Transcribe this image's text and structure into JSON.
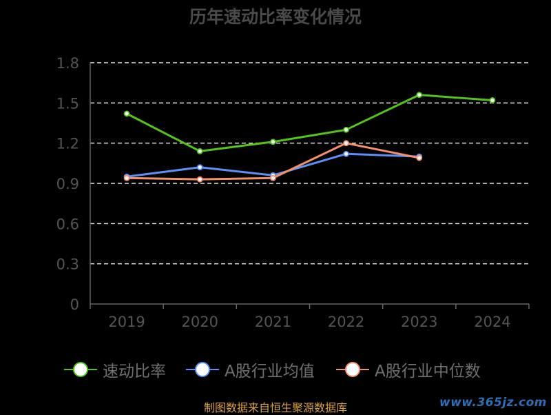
{
  "chart_data": {
    "type": "line",
    "title": "历年速动比率变化情况",
    "categories": [
      "2019",
      "2020",
      "2021",
      "2022",
      "2023",
      "2024"
    ],
    "y_ticks": [
      "0",
      "0.3",
      "0.6",
      "0.9",
      "1.2",
      "1.5",
      "1.8"
    ],
    "ylim": [
      0,
      1.8
    ],
    "grid": true,
    "legend_position": "bottom",
    "series": [
      {
        "name": "速动比率",
        "color": "#52c41a",
        "values": [
          1.42,
          1.14,
          1.21,
          1.3,
          1.56,
          1.52
        ]
      },
      {
        "name": "A股行业均值",
        "color": "#5b8ff9",
        "values": [
          0.95,
          1.02,
          0.96,
          1.12,
          1.1,
          null
        ]
      },
      {
        "name": "A股行业中位数",
        "color": "#f6906a",
        "values": [
          0.94,
          0.93,
          0.94,
          1.2,
          1.09,
          null
        ]
      }
    ]
  },
  "footer": {
    "source": "制图数据来自恒生聚源数据库",
    "watermark": "www.365jz.com"
  }
}
